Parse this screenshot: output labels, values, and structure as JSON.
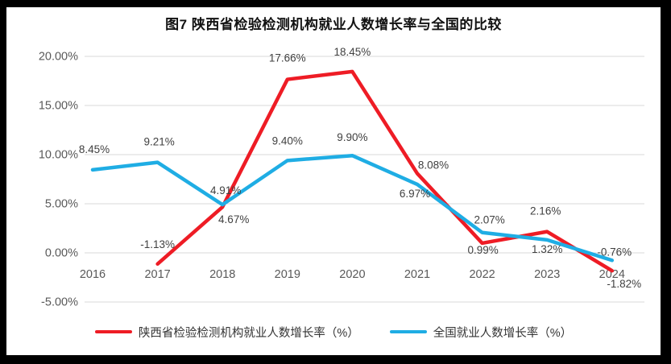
{
  "chart_data": {
    "type": "line",
    "title": "图7 陕西省检验检测机构就业人数增长率与全国的比较",
    "categories": [
      "2016",
      "2017",
      "2018",
      "2019",
      "2020",
      "2021",
      "2022",
      "2023",
      "2024"
    ],
    "series": [
      {
        "name": "陕西省检验检测机构就业人数增长率（%）",
        "color": "#ee1c25",
        "values": [
          null,
          -1.13,
          4.67,
          17.66,
          18.45,
          8.08,
          0.99,
          2.16,
          -1.82
        ],
        "data_labels": [
          null,
          "-1.13%",
          "4.67%",
          "17.66%",
          "18.45%",
          "8.08%",
          "0.99%",
          "2.16%",
          "-1.82%"
        ]
      },
      {
        "name": "全国就业人数增长率（%）",
        "color": "#1fade4",
        "values": [
          8.45,
          9.21,
          4.91,
          9.4,
          9.9,
          6.97,
          2.07,
          1.32,
          -0.76
        ],
        "data_labels": [
          "8.45%",
          "9.21%",
          "4.91%",
          "9.40%",
          "9.90%",
          "6.97%",
          "2.07%",
          "1.32%",
          "-0.76%"
        ]
      }
    ],
    "ylim": [
      -5,
      20
    ],
    "ytick_step": 5,
    "ytick_labels": [
      "20.00%",
      "15.00%",
      "10.00%",
      "5.00%",
      "0.00%",
      "-5.00%"
    ],
    "grid": true,
    "grid_color": "#d9d9d9",
    "axis_label_color": "#595959",
    "data_label_color": "#404040",
    "legend_position": "bottom"
  }
}
